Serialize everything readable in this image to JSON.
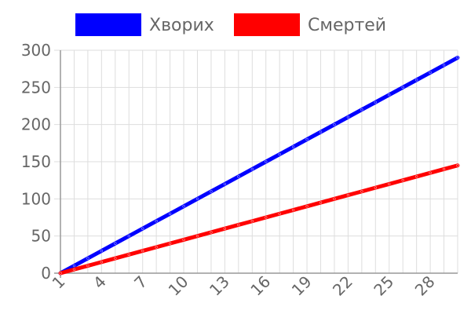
{
  "chart_data": {
    "type": "line",
    "x": [
      1,
      2,
      3,
      4,
      5,
      6,
      7,
      8,
      9,
      10,
      11,
      12,
      13,
      14,
      15,
      16,
      17,
      18,
      19,
      20,
      21,
      22,
      23,
      24,
      25,
      26,
      27,
      28,
      29,
      30
    ],
    "x_tick_labels": [
      "1",
      "4",
      "7",
      "10",
      "13",
      "16",
      "19",
      "22",
      "25",
      "28"
    ],
    "series": [
      {
        "name": "Хворих",
        "color": "#0000ff",
        "values": [
          0,
          10,
          20,
          30,
          40,
          50,
          60,
          70,
          80,
          90,
          100,
          110,
          120,
          130,
          140,
          150,
          160,
          170,
          180,
          190,
          200,
          210,
          220,
          230,
          240,
          250,
          260,
          270,
          280,
          290
        ]
      },
      {
        "name": "Смертей",
        "color": "#ff0000",
        "values": [
          0,
          5,
          10,
          15,
          20,
          25,
          30,
          35,
          40,
          45,
          50,
          55,
          60,
          65,
          70,
          75,
          80,
          85,
          90,
          95,
          100,
          105,
          110,
          115,
          120,
          125,
          130,
          135,
          140,
          145
        ]
      }
    ],
    "ylim": [
      0,
      300
    ],
    "y_ticks": [
      0,
      50,
      100,
      150,
      200,
      250,
      300
    ],
    "grid": true,
    "legend_position": "top",
    "title": "",
    "xlabel": "",
    "ylabel": ""
  }
}
